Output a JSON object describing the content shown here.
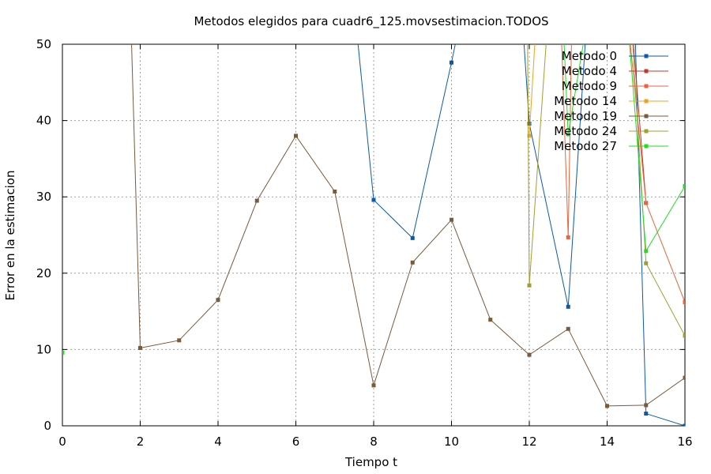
{
  "chart_data": {
    "type": "line",
    "title": "Metodos elegidos para cuadr6_125.movsestimacion.TODOS",
    "xlabel": "Tiempo t",
    "ylabel": "Error en la estimacion",
    "xlim": [
      0,
      16
    ],
    "ylim": [
      0,
      50
    ],
    "xticks": [
      0,
      2,
      4,
      6,
      8,
      10,
      12,
      14,
      16
    ],
    "yticks": [
      0,
      10,
      20,
      30,
      40,
      50
    ],
    "grid": true,
    "legend_position": "top-right",
    "series": [
      {
        "name": "Metodo 0",
        "color": "#0a5aa8",
        "points": [
          [
            7.5,
            55
          ],
          [
            8,
            29.6
          ],
          [
            9,
            24.6
          ],
          [
            10,
            47.6
          ],
          [
            10.3,
            55
          ],
          [
            11.8,
            55
          ],
          [
            12,
            39.6
          ],
          [
            13,
            15.6
          ],
          [
            13.5,
            55
          ],
          [
            14.7,
            55
          ],
          [
            15,
            1.6
          ],
          [
            16,
            0
          ]
        ]
      },
      {
        "name": "Metodo 4",
        "color": "#c0392b",
        "points": [
          [
            14.6,
            55
          ],
          [
            15,
            29.2
          ]
        ]
      },
      {
        "name": "Metodo 9",
        "color": "#e8643a",
        "points": [
          [
            12.8,
            55
          ],
          [
            13,
            24.7
          ],
          [
            13.1,
            55
          ],
          [
            14.5,
            55
          ],
          [
            15,
            29.2
          ],
          [
            16,
            16.2
          ]
        ]
      },
      {
        "name": "Metodo 14",
        "color": "#f0a020",
        "points": [
          [
            12,
            38
          ],
          [
            12.2,
            55
          ]
        ]
      },
      {
        "name": "Metodo 19",
        "color": "#7a5a3c",
        "points": [
          [
            1.75,
            55
          ],
          [
            2,
            10.2
          ],
          [
            3,
            11.2
          ],
          [
            4,
            16.5
          ],
          [
            5,
            29.5
          ],
          [
            6,
            38
          ],
          [
            7,
            30.7
          ],
          [
            8,
            5.3
          ],
          [
            9,
            21.4
          ],
          [
            10,
            27
          ],
          [
            11,
            13.9
          ],
          [
            12,
            9.3
          ],
          [
            13,
            12.7
          ],
          [
            14,
            2.6
          ],
          [
            15,
            2.7
          ],
          [
            16,
            6.3
          ]
        ]
      },
      {
        "name": "Metodo 24",
        "color": "#a0a030",
        "points": [
          [
            11.95,
            55
          ],
          [
            12,
            18.4
          ],
          [
            12.5,
            55
          ],
          [
            14.6,
            55
          ],
          [
            15,
            21.3
          ],
          [
            16,
            11.8
          ]
        ]
      },
      {
        "name": "Metodo 27",
        "color": "#22dd22",
        "points": [
          [
            0,
            9.6
          ]
        ],
        "segments": [
          [
            [
              12.85,
              55
            ],
            [
              13,
              38.2
            ],
            [
              13.55,
              55
            ]
          ],
          [
            [
              14.5,
              55
            ],
            [
              15,
              22.9
            ],
            [
              16,
              31.4
            ]
          ]
        ]
      }
    ]
  }
}
